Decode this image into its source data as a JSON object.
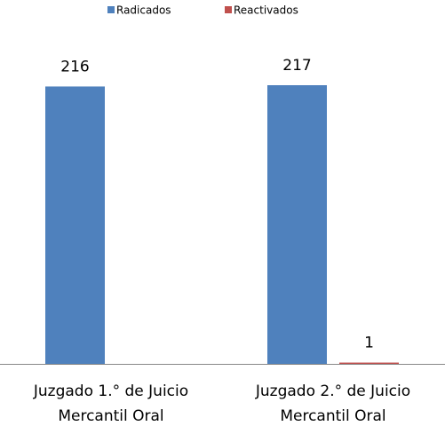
{
  "chart_data": {
    "type": "bar",
    "categories": [
      "Juzgado 1.° de Juicio Mercantil Oral",
      "Juzgado 2.° de Juicio Mercantil Oral"
    ],
    "series": [
      {
        "name": "Radicados",
        "color": "#4f81bd",
        "values": [
          216,
          217
        ]
      },
      {
        "name": "Reactivados",
        "color": "#c0504d",
        "values": [
          null,
          1
        ]
      }
    ],
    "legend": "top"
  }
}
